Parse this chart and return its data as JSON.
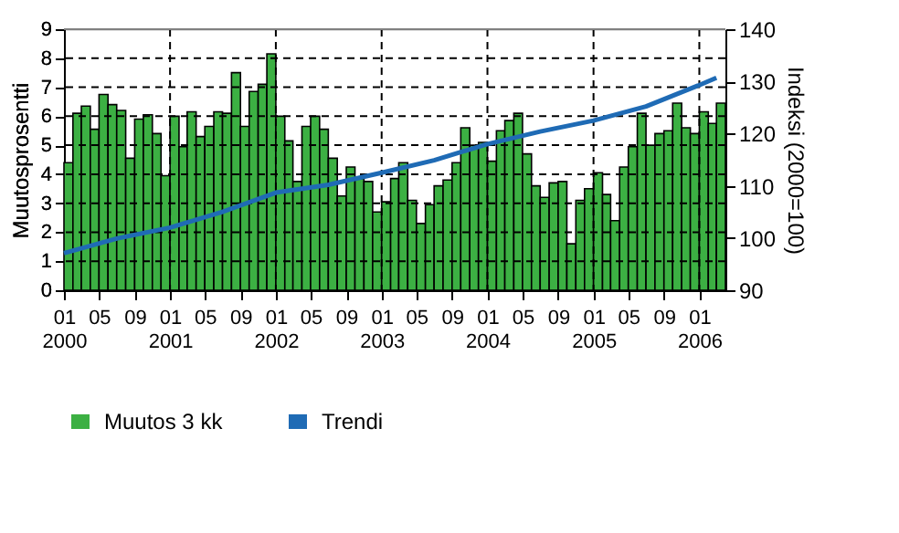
{
  "chart_data": {
    "type": "bar",
    "xlabel": null,
    "ylabel": "Muutosprosentti",
    "y2label": "Indeksi (2000=100)",
    "x": [
      "2000-01",
      "2000-02",
      "2000-03",
      "2000-04",
      "2000-05",
      "2000-06",
      "2000-07",
      "2000-08",
      "2000-09",
      "2000-10",
      "2000-11",
      "2000-12",
      "2001-01",
      "2001-02",
      "2001-03",
      "2001-04",
      "2001-05",
      "2001-06",
      "2001-07",
      "2001-08",
      "2001-09",
      "2001-10",
      "2001-11",
      "2001-12",
      "2002-01",
      "2002-02",
      "2002-03",
      "2002-04",
      "2002-05",
      "2002-06",
      "2002-07",
      "2002-08",
      "2002-09",
      "2002-10",
      "2002-11",
      "2002-12",
      "2003-01",
      "2003-02",
      "2003-03",
      "2003-04",
      "2003-05",
      "2003-06",
      "2003-07",
      "2003-08",
      "2003-09",
      "2003-10",
      "2003-11",
      "2003-12",
      "2004-01",
      "2004-02",
      "2004-03",
      "2004-04",
      "2004-05",
      "2004-06",
      "2004-07",
      "2004-08",
      "2004-09",
      "2004-10",
      "2004-11",
      "2004-12",
      "2005-01",
      "2005-02",
      "2005-03",
      "2005-04",
      "2005-05",
      "2005-06",
      "2005-07",
      "2005-08",
      "2005-09",
      "2005-10",
      "2005-11",
      "2005-12",
      "2006-01",
      "2006-02",
      "2006-03"
    ],
    "series": [
      {
        "name": "Muutos 3 kk",
        "color": "#3cb043",
        "values": [
          4.4,
          6.1,
          6.35,
          5.55,
          6.75,
          6.4,
          6.2,
          4.55,
          5.9,
          6.05,
          5.4,
          3.95,
          6.0,
          4.95,
          6.15,
          5.3,
          5.65,
          6.15,
          6.1,
          7.5,
          5.65,
          6.85,
          7.1,
          8.15,
          6.0,
          5.15,
          3.75,
          5.65,
          6.0,
          5.55,
          4.55,
          3.25,
          4.25,
          3.85,
          3.75,
          2.7,
          3.05,
          3.85,
          4.4,
          3.1,
          2.3,
          2.95,
          3.6,
          3.8,
          4.4,
          5.6,
          5.0,
          5.1,
          4.45,
          5.5,
          5.85,
          6.1,
          4.7,
          3.6,
          3.2,
          3.7,
          3.75,
          1.6,
          3.1,
          3.5,
          4.05,
          3.3,
          2.4,
          4.25,
          4.95,
          6.1,
          5.0,
          5.4,
          5.5,
          6.45,
          5.6,
          5.4,
          6.15,
          5.75,
          6.45
        ]
      },
      {
        "name": "Trendi",
        "type": "line",
        "axis": "y2",
        "color": "#1f6bb5",
        "x": [
          "2000-01",
          "2000-07",
          "2001-01",
          "2001-07",
          "2002-01",
          "2002-07",
          "2003-01",
          "2003-07",
          "2004-01",
          "2004-07",
          "2005-01",
          "2005-07",
          "2006-01",
          "2006-03"
        ],
        "values": [
          97.1,
          99.9,
          102.0,
          105.0,
          108.7,
          110.2,
          112.5,
          114.9,
          118.0,
          120.4,
          122.5,
          125.2,
          129.3,
          130.7
        ]
      }
    ],
    "xlim": [
      "2000-01",
      "2006-04"
    ],
    "xticks": [
      {
        "value": "2000-01",
        "label": "01\n2000"
      },
      {
        "value": "2000-05",
        "label": "05"
      },
      {
        "value": "2000-09",
        "label": "09"
      },
      {
        "value": "2001-01",
        "label": "01\n2001"
      },
      {
        "value": "2001-05",
        "label": "05"
      },
      {
        "value": "2001-09",
        "label": "09"
      },
      {
        "value": "2002-01",
        "label": "01\n2002"
      },
      {
        "value": "2002-05",
        "label": "05"
      },
      {
        "value": "2002-09",
        "label": "09"
      },
      {
        "value": "2003-01",
        "label": "01\n2003"
      },
      {
        "value": "2003-05",
        "label": "05"
      },
      {
        "value": "2003-09",
        "label": "09"
      },
      {
        "value": "2004-01",
        "label": "01\n2004"
      },
      {
        "value": "2004-05",
        "label": "05"
      },
      {
        "value": "2004-09",
        "label": "09"
      },
      {
        "value": "2005-01",
        "label": "01\n2005"
      },
      {
        "value": "2005-05",
        "label": "05"
      },
      {
        "value": "2005-09",
        "label": "09"
      },
      {
        "value": "2006-01",
        "label": "01\n2006"
      }
    ],
    "ylim": [
      0,
      9
    ],
    "yticks": [
      0,
      1,
      2,
      3,
      4,
      5,
      6,
      7,
      8,
      9
    ],
    "y2lim": [
      90,
      140
    ],
    "y2ticks": [
      90,
      100,
      110,
      120,
      130,
      140
    ],
    "grid": true,
    "legend": "bottom",
    "line_style": "solid"
  }
}
